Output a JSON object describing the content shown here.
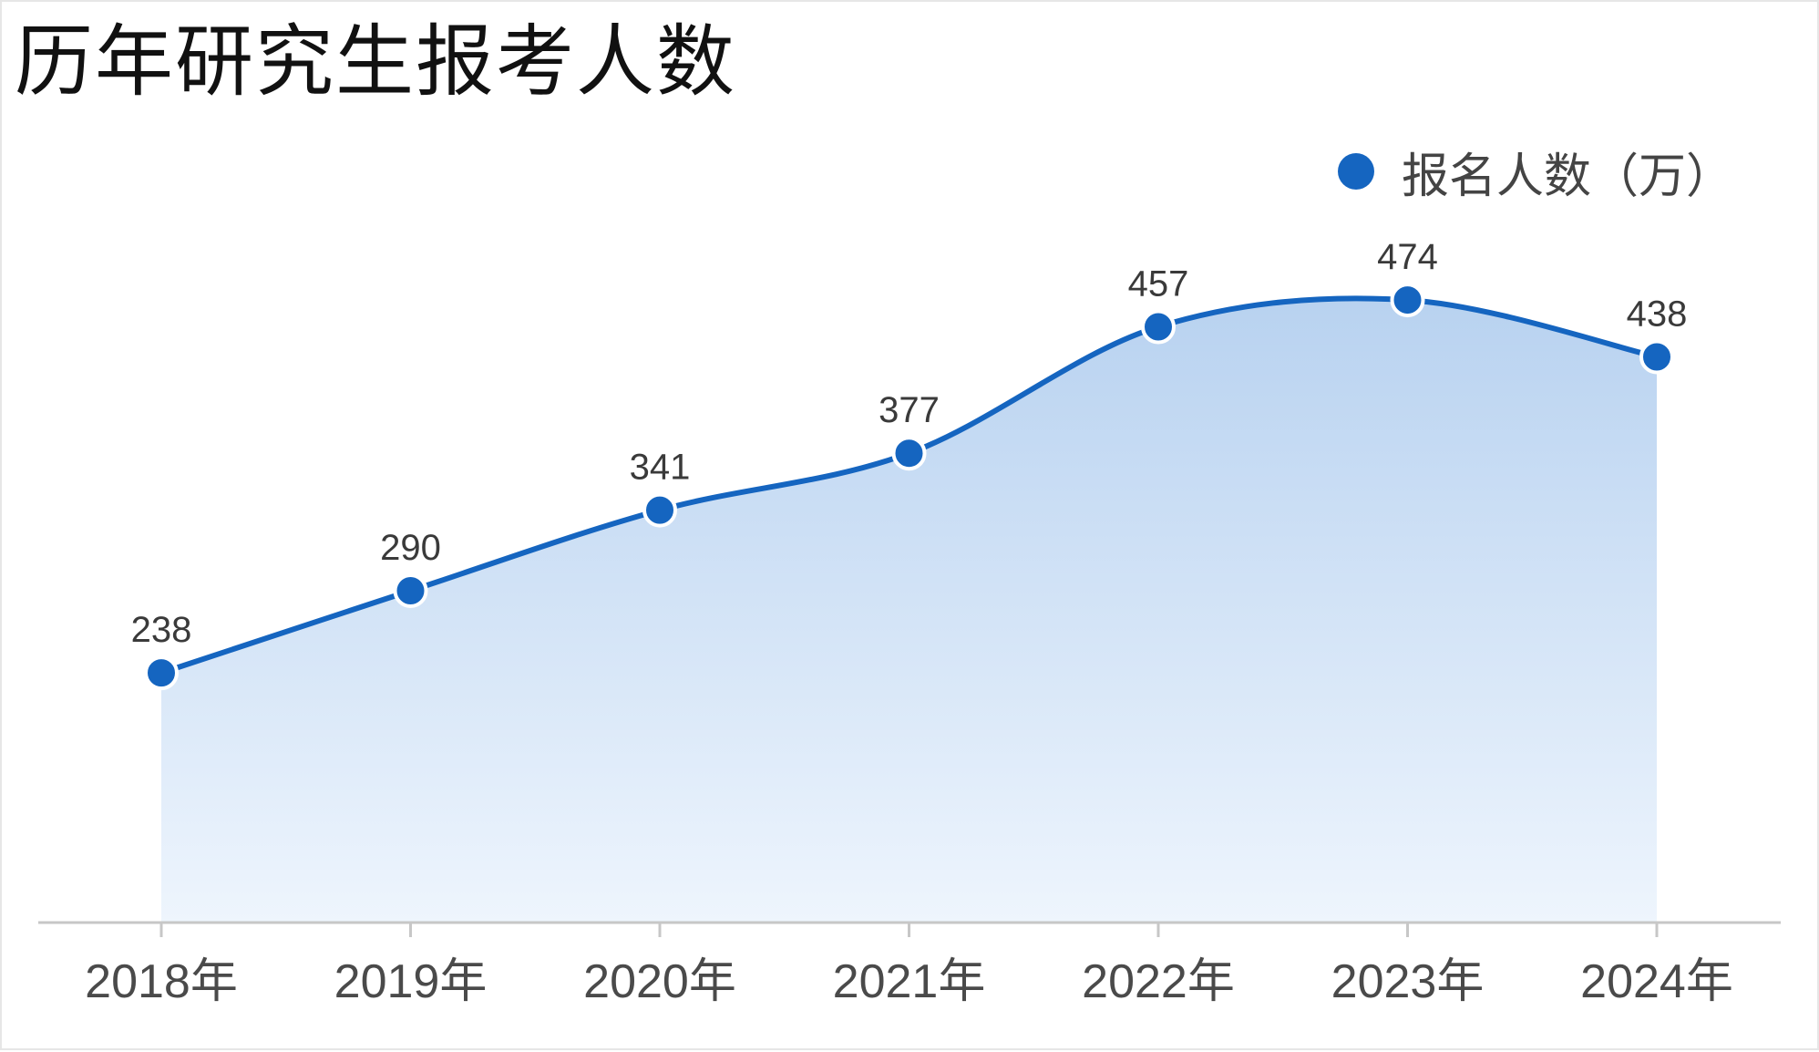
{
  "colors": {
    "line": "#1565c0",
    "area_top": "#b8d2f0",
    "area_bottom": "#eef5fd",
    "axis": "#c7c7c7",
    "marker_stroke": "#ffffff"
  },
  "chart_data": {
    "type": "area",
    "title": "历年研究生报考人数",
    "categories": [
      "2018年",
      "2019年",
      "2020年",
      "2021年",
      "2022年",
      "2023年",
      "2024年"
    ],
    "series": [
      {
        "name": "报名人数（万）",
        "values": [
          238,
          290,
          341,
          377,
          457,
          474,
          438
        ],
        "data_labels": [
          "238",
          "290",
          "341",
          "377",
          "457",
          "474",
          "438"
        ]
      }
    ],
    "xlabel": "",
    "ylabel": "",
    "ylim": [
      80,
      530
    ],
    "grid": false,
    "legend_position": "top-right",
    "smooth": true,
    "markers": true
  }
}
